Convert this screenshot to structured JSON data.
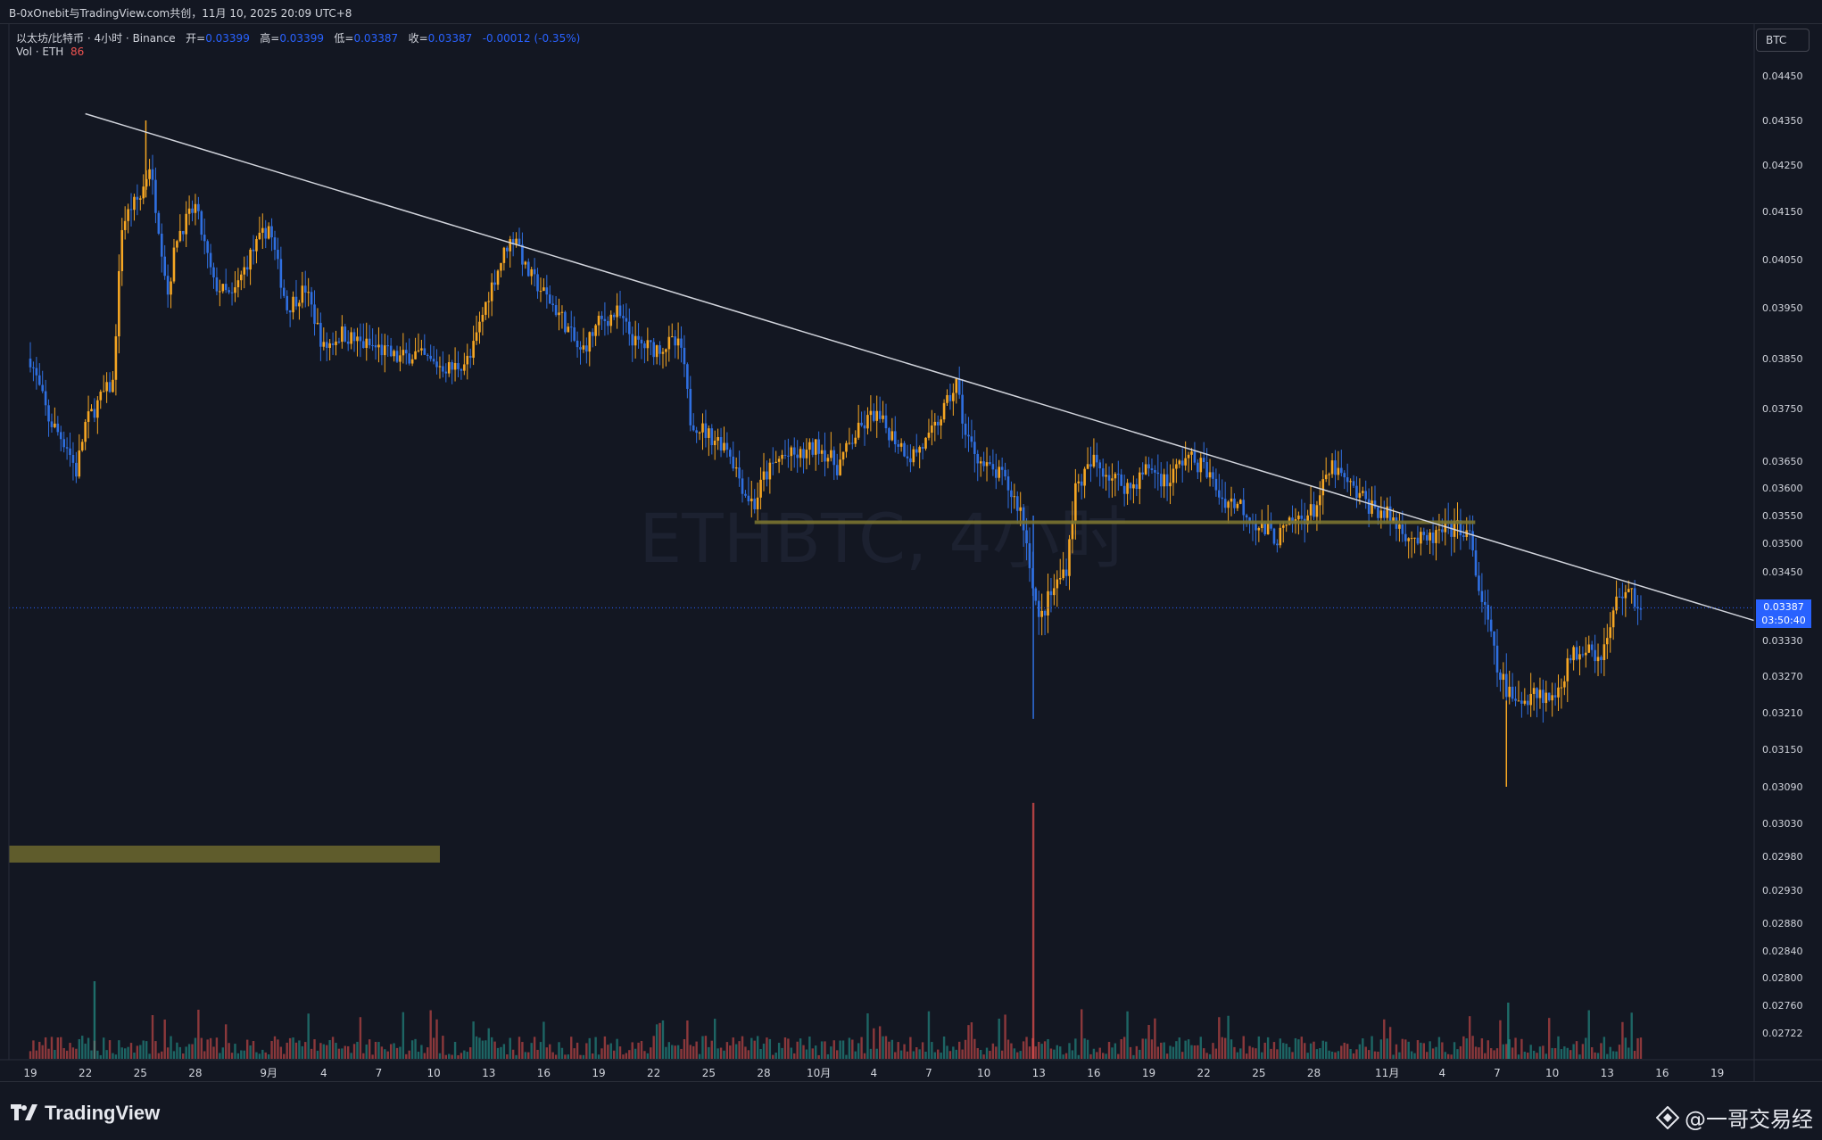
{
  "header": {
    "share_line": "B-0xOnebit与TradingView.com共创，11月 10, 2025 20:09 UTC+8"
  },
  "legend": {
    "symbol": "以太坊/比特币 · 4小时 · Binance",
    "open_label": "开=",
    "open_value": "0.03399",
    "high_label": "高=",
    "high_value": "0.03399",
    "low_label": "低=",
    "low_value": "0.03387",
    "close_label": "收=",
    "close_value": "0.03387",
    "change": "-0.00012 (-0.35%)",
    "volume_label": "Vol · ETH",
    "volume_value": "86"
  },
  "watermark": "ETHBTC, 4小时",
  "price_axis": {
    "currency": "BTC",
    "last_price": "0.03387",
    "countdown": "03:50:40"
  },
  "footer": {
    "brand": "TradingView",
    "author": "@一哥交易经"
  },
  "colors": {
    "background": "#131722",
    "up": "#f5a623",
    "down": "#2f6fe0",
    "vol_up": "#26a69a",
    "vol_down": "#ef5350",
    "trendline": "#d1d4dc",
    "zone": "#7a7430",
    "price_tag": "#2962ff"
  },
  "chart_data": {
    "type": "candlestick",
    "symbol": "ETHBTC",
    "interval": "4h",
    "ylim": [
      0.0268,
      0.0452
    ],
    "y_ticks": [
      "0.04450",
      "0.04350",
      "0.04250",
      "0.04150",
      "0.04050",
      "0.03950",
      "0.03850",
      "0.03750",
      "0.03650",
      "0.03600",
      "0.03550",
      "0.03500",
      "0.03450",
      "0.03330",
      "0.03270",
      "0.03210",
      "0.03150",
      "0.03090",
      "0.03030",
      "0.02980",
      "0.02930",
      "0.02880",
      "0.02840",
      "0.02800",
      "0.02760",
      "0.02722"
    ],
    "x_ticks": [
      "19",
      "22",
      "25",
      "28",
      "9月",
      "4",
      "7",
      "10",
      "13",
      "16",
      "19",
      "22",
      "25",
      "28",
      "10月",
      "4",
      "7",
      "10",
      "13",
      "16",
      "19",
      "22",
      "25",
      "28",
      "11月",
      "4",
      "7",
      "10",
      "13",
      "16",
      "19"
    ],
    "x_tick_days": [
      0,
      3,
      6,
      9,
      13,
      16,
      19,
      22,
      25,
      28,
      31,
      34,
      37,
      40,
      43,
      46,
      49,
      52,
      55,
      58,
      61,
      64,
      67,
      70,
      74,
      77,
      80,
      83,
      86,
      89,
      92
    ],
    "path_points": [
      [
        0,
        0.0385
      ],
      [
        1,
        0.0373
      ],
      [
        2,
        0.0368
      ],
      [
        2.5,
        0.0363
      ],
      [
        3,
        0.0372
      ],
      [
        4,
        0.0378
      ],
      [
        4.5,
        0.038
      ],
      [
        5,
        0.0412
      ],
      [
        5.5,
        0.0416
      ],
      [
        6,
        0.0418
      ],
      [
        6.5,
        0.0425
      ],
      [
        7,
        0.0412
      ],
      [
        7.5,
        0.0398
      ],
      [
        8,
        0.041
      ],
      [
        9,
        0.0416
      ],
      [
        10,
        0.04
      ],
      [
        11,
        0.0397
      ],
      [
        12,
        0.0406
      ],
      [
        13,
        0.0412
      ],
      [
        14,
        0.0395
      ],
      [
        15,
        0.0399
      ],
      [
        16,
        0.0387
      ],
      [
        17,
        0.039
      ],
      [
        18,
        0.0388
      ],
      [
        19,
        0.0387
      ],
      [
        20,
        0.0385
      ],
      [
        21,
        0.0386
      ],
      [
        22,
        0.0384
      ],
      [
        23,
        0.0383
      ],
      [
        24,
        0.0385
      ],
      [
        25,
        0.0398
      ],
      [
        26,
        0.0408
      ],
      [
        26.5,
        0.041
      ],
      [
        27,
        0.0403
      ],
      [
        28,
        0.0398
      ],
      [
        29,
        0.0393
      ],
      [
        30,
        0.0386
      ],
      [
        31,
        0.0392
      ],
      [
        32,
        0.0394
      ],
      [
        33,
        0.0388
      ],
      [
        34,
        0.0387
      ],
      [
        35,
        0.0388
      ],
      [
        35.5,
        0.0387
      ],
      [
        36,
        0.0373
      ],
      [
        37,
        0.037
      ],
      [
        38,
        0.0368
      ],
      [
        39,
        0.0359
      ],
      [
        39.5,
        0.0357
      ],
      [
        40,
        0.0362
      ],
      [
        41,
        0.0366
      ],
      [
        42,
        0.0366
      ],
      [
        43,
        0.0368
      ],
      [
        44,
        0.0364
      ],
      [
        45,
        0.037
      ],
      [
        46,
        0.0374
      ],
      [
        47,
        0.037
      ],
      [
        48,
        0.0366
      ],
      [
        49,
        0.0369
      ],
      [
        50,
        0.0376
      ],
      [
        50.5,
        0.038
      ],
      [
        51,
        0.037
      ],
      [
        52,
        0.0364
      ],
      [
        53,
        0.0362
      ],
      [
        54,
        0.0356
      ],
      [
        54.5,
        0.0347
      ],
      [
        55,
        0.0336
      ],
      [
        55.5,
        0.034
      ],
      [
        56,
        0.0343
      ],
      [
        56.5,
        0.0346
      ],
      [
        57,
        0.036
      ],
      [
        58,
        0.0365
      ],
      [
        59,
        0.0362
      ],
      [
        60,
        0.036
      ],
      [
        61,
        0.0364
      ],
      [
        62,
        0.0361
      ],
      [
        63,
        0.0366
      ],
      [
        64,
        0.0364
      ],
      [
        65,
        0.0358
      ],
      [
        66,
        0.0357
      ],
      [
        67,
        0.0353
      ],
      [
        68,
        0.0351
      ],
      [
        69,
        0.0354
      ],
      [
        70,
        0.0356
      ],
      [
        71,
        0.0364
      ],
      [
        72,
        0.036
      ],
      [
        73,
        0.0357
      ],
      [
        74,
        0.0355
      ],
      [
        75,
        0.0352
      ],
      [
        76,
        0.035
      ],
      [
        77,
        0.0352
      ],
      [
        78,
        0.0353
      ],
      [
        78.5,
        0.0351
      ],
      [
        79,
        0.0342
      ],
      [
        79.5,
        0.0336
      ],
      [
        80,
        0.0328
      ],
      [
        81,
        0.0322
      ],
      [
        82,
        0.0325
      ],
      [
        83,
        0.0323
      ],
      [
        84,
        0.033
      ],
      [
        85,
        0.0333
      ],
      [
        85.5,
        0.033
      ],
      [
        86,
        0.0333
      ],
      [
        86.5,
        0.034
      ],
      [
        87,
        0.0342
      ],
      [
        87.5,
        0.034
      ],
      [
        88,
        0.0338
      ]
    ],
    "trendline": [
      [
        3,
        0.04365
      ],
      [
        94,
        0.03365
      ]
    ],
    "support_line": {
      "x": [
        39.5,
        78.8
      ],
      "y": 0.03538
    },
    "last_price": 0.03387
  }
}
